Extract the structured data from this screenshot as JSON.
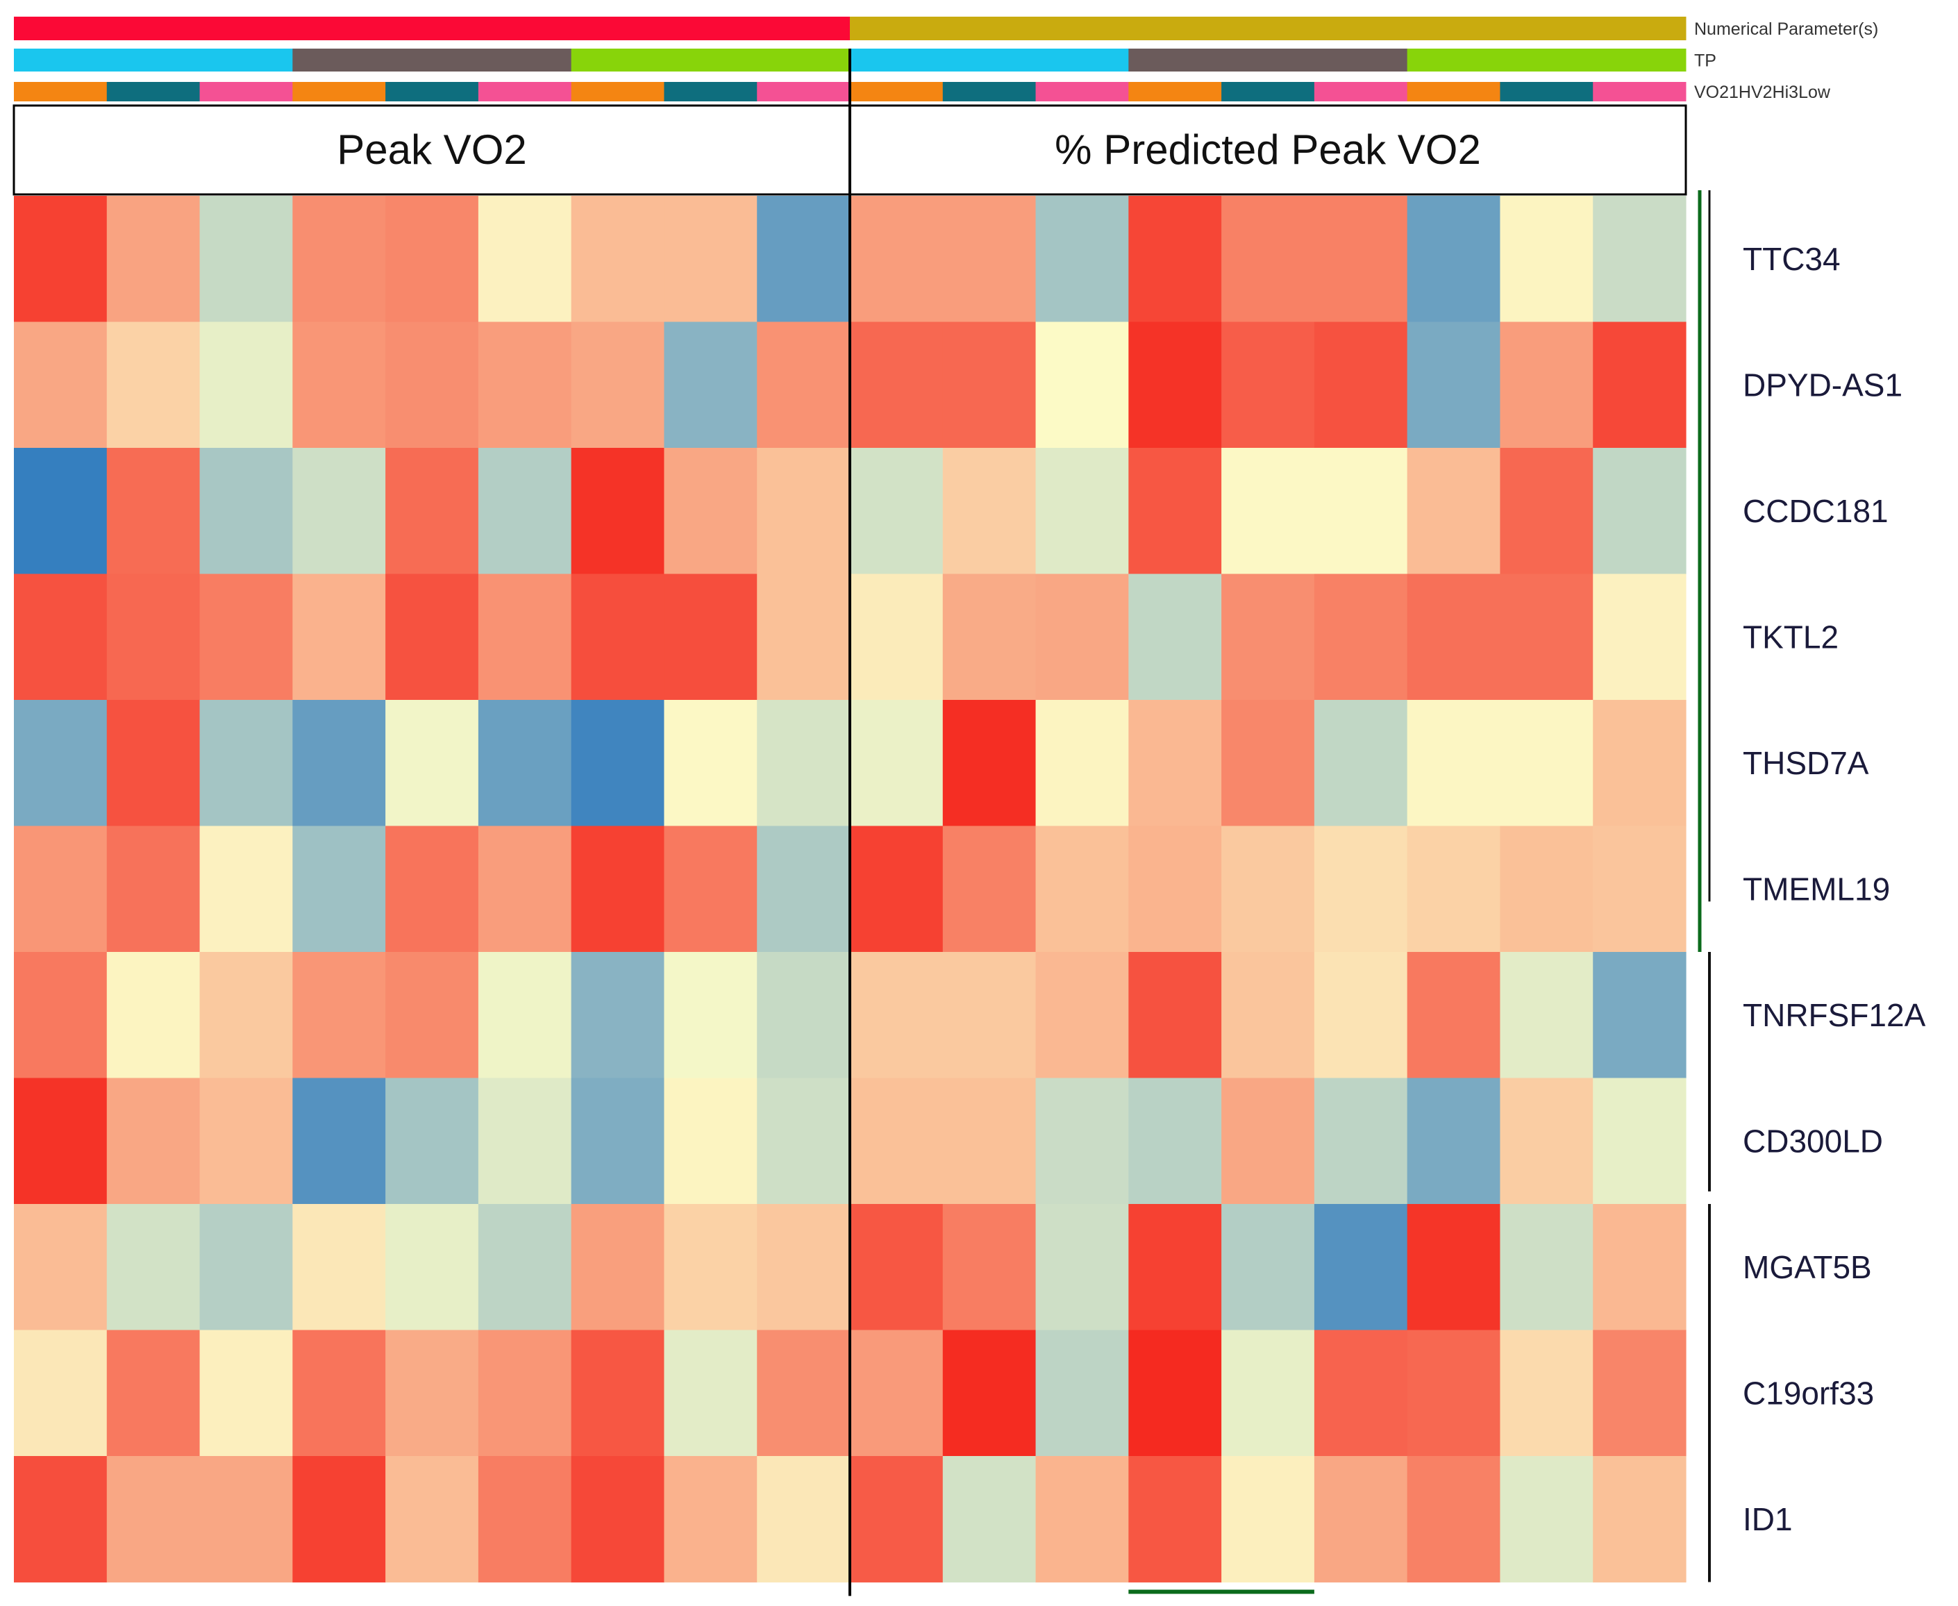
{
  "chart_data": {
    "type": "heatmap",
    "annotation_tracks": [
      {
        "name": "Numerical Parameter(s)",
        "groups": 2,
        "colors": [
          "#fb0936",
          "#c9ab0f"
        ]
      },
      {
        "name": "TP",
        "groups": 6,
        "colors": [
          "#1ac6ee",
          "#6b5b5b",
          "#88d40a",
          "#1ac6ee",
          "#6b5b5b",
          "#88d40a"
        ]
      },
      {
        "name": "VO21HV2Hi3Low",
        "groups": 18,
        "colors": [
          "#f48512",
          "#0e6e7e",
          "#f45194",
          "#f48512",
          "#0e6e7e",
          "#f45194",
          "#f48512",
          "#0e6e7e",
          "#f45194",
          "#f48512",
          "#0e6e7e",
          "#f45194",
          "#f48512",
          "#0e6e7e",
          "#f45194",
          "#f48512",
          "#0e6e7e",
          "#f45194"
        ]
      }
    ],
    "column_groups": [
      "Peak VO2",
      "% Predicted Peak VO2"
    ],
    "rows": [
      "TTC34",
      "DPYD-AS1",
      "CCDC181",
      "TKTL2",
      "THSD7A",
      "TMEML19",
      "TNRFSF12A",
      "CD300LD",
      "MGAT5B",
      "C19orf33",
      "ID1"
    ],
    "color_scale": {
      "low": "#2b78be",
      "mid": "#fcfcc8",
      "high": "#f5281e",
      "range": [
        -1,
        1
      ]
    },
    "values": [
      [
        0.88,
        0.42,
        -0.26,
        0.52,
        0.55,
        0.05,
        0.3,
        0.3,
        -0.72,
        0.45,
        0.45,
        -0.42,
        0.86,
        0.58,
        0.58,
        -0.7,
        0.04,
        -0.24
      ],
      [
        0.4,
        0.2,
        -0.1,
        0.48,
        0.52,
        0.45,
        0.4,
        -0.55,
        0.5,
        0.7,
        0.7,
        0.01,
        0.95,
        0.75,
        0.8,
        -0.62,
        0.45,
        0.85
      ],
      [
        -0.95,
        0.68,
        -0.4,
        -0.22,
        0.68,
        -0.35,
        0.95,
        0.4,
        0.28,
        -0.2,
        0.22,
        -0.14,
        0.78,
        0.02,
        0.02,
        0.3,
        0.7,
        -0.28
      ],
      [
        0.8,
        0.7,
        0.6,
        0.35,
        0.8,
        0.5,
        0.82,
        0.82,
        0.28,
        0.08,
        0.38,
        0.4,
        -0.28,
        0.52,
        0.58,
        0.66,
        0.66,
        0.05
      ],
      [
        -0.62,
        0.8,
        -0.42,
        -0.72,
        -0.05,
        -0.7,
        -0.9,
        0.02,
        -0.18,
        -0.08,
        0.97,
        0.04,
        0.32,
        0.55,
        -0.28,
        0.03,
        0.03,
        0.28
      ],
      [
        0.48,
        0.65,
        0.05,
        -0.45,
        0.64,
        0.45,
        0.88,
        0.62,
        -0.38,
        0.88,
        0.58,
        0.28,
        0.34,
        0.24,
        0.14,
        0.2,
        0.28,
        0.26
      ],
      [
        0.62,
        0.04,
        0.24,
        0.48,
        0.54,
        -0.06,
        -0.55,
        -0.04,
        -0.26,
        0.24,
        0.24,
        0.32,
        0.8,
        0.26,
        0.12,
        0.62,
        -0.12,
        -0.62
      ],
      [
        0.95,
        0.4,
        0.3,
        -0.8,
        -0.42,
        -0.14,
        -0.6,
        0.04,
        -0.22,
        0.28,
        0.28,
        -0.24,
        -0.32,
        0.4,
        -0.3,
        -0.62,
        0.22,
        -0.1
      ],
      [
        0.3,
        -0.2,
        -0.34,
        0.1,
        -0.1,
        -0.3,
        0.44,
        0.2,
        0.25,
        0.78,
        0.6,
        -0.22,
        0.88,
        -0.35,
        -0.8,
        0.94,
        -0.22,
        0.32
      ],
      [
        0.1,
        0.62,
        0.06,
        0.64,
        0.38,
        0.48,
        0.78,
        -0.12,
        0.52,
        0.46,
        0.98,
        -0.3,
        0.99,
        -0.1,
        0.72,
        0.7,
        0.16,
        0.56
      ],
      [
        0.82,
        0.4,
        0.4,
        0.88,
        0.3,
        0.6,
        0.85,
        0.35,
        0.1,
        0.76,
        -0.2,
        0.34,
        0.78,
        0.06,
        0.4,
        0.58,
        -0.14,
        0.28
      ]
    ]
  }
}
